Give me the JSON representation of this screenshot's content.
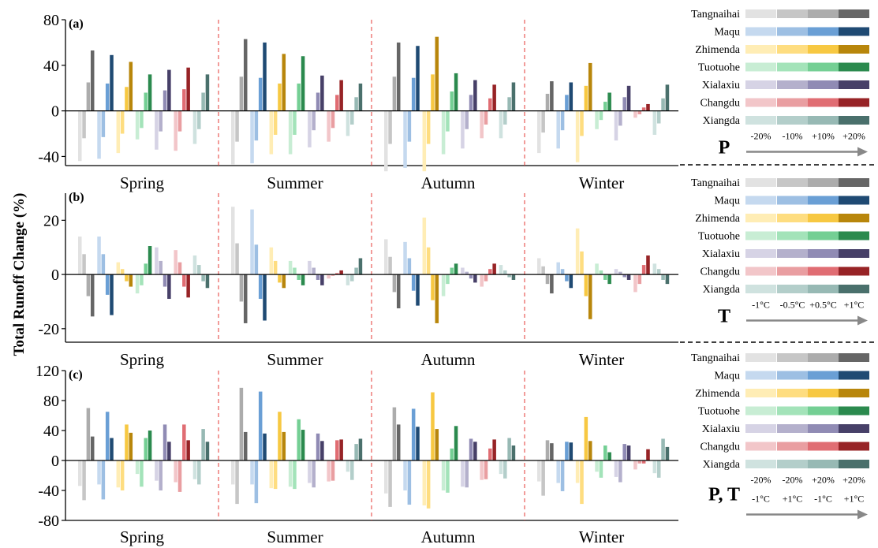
{
  "figure": {
    "ylabel": "Total Runoff Change (%)",
    "seasons": [
      "Spring",
      "Summer",
      "Autumn",
      "Winter"
    ],
    "stations": [
      "Tangnaihai",
      "Maqu",
      "Zhimenda",
      "Tuotuohe",
      "Xialaxiu",
      "Changdu",
      "Xiangda"
    ],
    "station_colors": [
      [
        "#e2e2e2",
        "#c6c6c6",
        "#acacac",
        "#666666"
      ],
      [
        "#c5d9ef",
        "#9dbfe3",
        "#6a9fd5",
        "#1f4a73"
      ],
      [
        "#ffedb5",
        "#fedd80",
        "#f7c842",
        "#b8860b"
      ],
      [
        "#c8edd4",
        "#a3e3b9",
        "#74cf94",
        "#2b8a4e"
      ],
      [
        "#d6d3e5",
        "#b4b0cc",
        "#908bb4",
        "#474068"
      ],
      [
        "#f2c6c9",
        "#e99ea1",
        "#e06d73",
        "#972326"
      ],
      [
        "#cfe2df",
        "#b3ceca",
        "#97b9b4",
        "#4a706c"
      ]
    ]
  },
  "chart_data": [
    {
      "type": "bar",
      "panel_label": "(a)",
      "scenario_label": "P",
      "scenario_levels": [
        "-20%",
        "-10%",
        "+10%",
        "+20%"
      ],
      "ylim": [
        -48,
        80
      ],
      "yticks": [
        -40,
        0,
        40,
        80
      ],
      "categories": [
        "Spring",
        "Summer",
        "Autumn",
        "Winter"
      ],
      "values": {
        "Spring": [
          [
            -44,
            -24,
            25,
            53
          ],
          [
            -42,
            -23,
            24,
            49
          ],
          [
            -37,
            -20,
            21,
            43
          ],
          [
            -25,
            -15,
            16,
            32
          ],
          [
            -34,
            -18,
            18,
            36
          ],
          [
            -35,
            -18,
            19,
            38
          ],
          [
            -29,
            -16,
            16,
            32
          ]
        ],
        "Summer": [
          [
            -47,
            -27,
            30,
            63
          ],
          [
            -46,
            -26,
            29,
            60
          ],
          [
            -38,
            -21,
            24,
            50
          ],
          [
            -38,
            -21,
            24,
            48
          ],
          [
            -32,
            -17,
            16,
            31
          ],
          [
            -27,
            -15,
            14,
            27
          ],
          [
            -22,
            -12,
            12,
            24
          ]
        ],
        "Autumn": [
          [
            -53,
            -29,
            30,
            60
          ],
          [
            -50,
            -27,
            29,
            57
          ],
          [
            -53,
            -29,
            32,
            65
          ],
          [
            -38,
            -18,
            17,
            33
          ],
          [
            -33,
            -16,
            14,
            27
          ],
          [
            -24,
            -12,
            11,
            23
          ],
          [
            -24,
            -12,
            12,
            25
          ]
        ],
        "Winter": [
          [
            -37,
            -19,
            15,
            26
          ],
          [
            -33,
            -17,
            14,
            25
          ],
          [
            -45,
            -22,
            22,
            42
          ],
          [
            -16,
            -8,
            8,
            16
          ],
          [
            -26,
            -13,
            12,
            22
          ],
          [
            -6,
            -3,
            3,
            6
          ],
          [
            -21,
            -11,
            11,
            23
          ]
        ]
      }
    },
    {
      "type": "bar",
      "panel_label": "(b)",
      "scenario_label": "T",
      "scenario_levels": [
        "-1°C",
        "-0.5°C",
        "+0.5°C",
        "+1°C"
      ],
      "ylim": [
        -25,
        30
      ],
      "yticks": [
        -20,
        0,
        20
      ],
      "categories": [
        "Spring",
        "Summer",
        "Autumn",
        "Winter"
      ],
      "values": {
        "Spring": [
          [
            14,
            7.5,
            -8,
            -15.5
          ],
          [
            14,
            7.5,
            -7.5,
            -15
          ],
          [
            4.5,
            2,
            -2.5,
            -4.5
          ],
          [
            -7,
            -4,
            4,
            10.5
          ],
          [
            10,
            5,
            -4.5,
            -9
          ],
          [
            9,
            4.5,
            -4.5,
            -8.5
          ],
          [
            7,
            3.5,
            -2.5,
            -5
          ]
        ],
        "Summer": [
          [
            25,
            11.5,
            -10,
            -18
          ],
          [
            24,
            11,
            -9,
            -17
          ],
          [
            10,
            5,
            -3,
            -5
          ],
          [
            5,
            2.5,
            -2,
            -4
          ],
          [
            5,
            2.5,
            -2,
            -4
          ],
          [
            -1.5,
            -0.5,
            0.5,
            1.5
          ],
          [
            -4,
            -2.5,
            2.5,
            6
          ]
        ],
        "Autumn": [
          [
            13,
            6.5,
            -6.5,
            -12.5
          ],
          [
            12,
            6,
            -6,
            -11.5
          ],
          [
            21,
            10,
            -9.5,
            -18
          ],
          [
            -8,
            -3.5,
            2.5,
            4
          ],
          [
            2.5,
            1,
            -1.5,
            -3
          ],
          [
            -4.5,
            -2.5,
            2,
            4
          ],
          [
            3.5,
            1.5,
            -1,
            -2
          ]
        ],
        "Winter": [
          [
            6,
            3,
            -3.5,
            -7
          ],
          [
            4.5,
            2,
            -2.5,
            -5
          ],
          [
            17,
            8.5,
            -8,
            -16.5
          ],
          [
            4,
            1.5,
            -2,
            -3.5
          ],
          [
            2,
            1,
            -1,
            -2
          ],
          [
            -6.5,
            -3.5,
            3.5,
            7
          ],
          [
            4,
            2,
            -2,
            -3.5
          ]
        ]
      }
    },
    {
      "type": "bar",
      "panel_label": "(c)",
      "scenario_label": "P, T",
      "scenario_levels": [
        "-20%",
        "-20%",
        "+20%",
        "+20%"
      ],
      "scenario_levels_2": [
        "-1°C",
        "+1°C",
        "-1°C",
        "+1°C"
      ],
      "ylim": [
        -80,
        120
      ],
      "yticks": [
        -80,
        -40,
        0,
        40,
        80,
        120
      ],
      "categories": [
        "Spring",
        "Summer",
        "Autumn",
        "Winter"
      ],
      "values": {
        "Spring": [
          [
            -34,
            -53,
            70,
            32
          ],
          [
            -32,
            -52,
            65,
            30
          ],
          [
            -36,
            -40,
            48,
            37
          ],
          [
            -18,
            -35,
            30,
            40
          ],
          [
            -27,
            -40,
            48,
            25
          ],
          [
            -29,
            -42,
            48,
            27
          ],
          [
            -25,
            -32,
            42,
            25
          ]
        ],
        "Summer": [
          [
            -32,
            -58,
            97,
            38
          ],
          [
            -32,
            -57,
            92,
            36
          ],
          [
            -37,
            -38,
            65,
            38
          ],
          [
            -35,
            -38,
            55,
            41
          ],
          [
            -30,
            -36,
            36,
            26
          ],
          [
            -28,
            -27,
            27,
            28
          ],
          [
            -15,
            -26,
            22,
            29
          ]
        ],
        "Autumn": [
          [
            -44,
            -62,
            71,
            48
          ],
          [
            -40,
            -59,
            69,
            45
          ],
          [
            -60,
            -64,
            91,
            42
          ],
          [
            -40,
            -43,
            16,
            46
          ],
          [
            -35,
            -36,
            29,
            25
          ],
          [
            -26,
            -25,
            16,
            28
          ],
          [
            -18,
            -24,
            30,
            20
          ]
        ],
        "Winter": [
          [
            -28,
            -47,
            27,
            23
          ],
          [
            -30,
            -41,
            25,
            24
          ],
          [
            -30,
            -58,
            58,
            26
          ],
          [
            -15,
            -23,
            20,
            11
          ],
          [
            -22,
            -29,
            22,
            20
          ],
          [
            -12,
            -4,
            -4,
            15
          ],
          [
            -17,
            -23,
            29,
            18
          ]
        ]
      }
    }
  ]
}
